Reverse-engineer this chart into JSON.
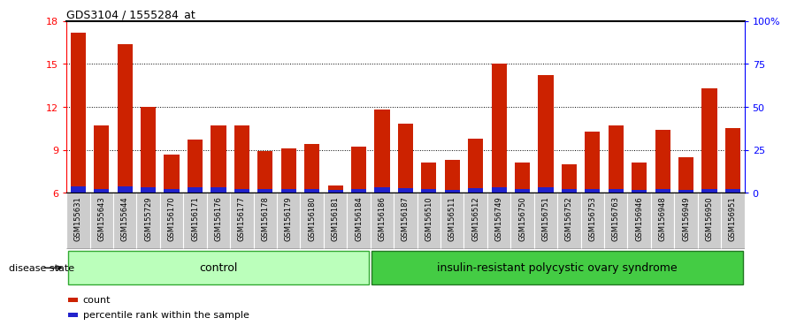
{
  "title": "GDS3104 / 1555284_at",
  "samples": [
    "GSM155631",
    "GSM155643",
    "GSM155644",
    "GSM155729",
    "GSM156170",
    "GSM156171",
    "GSM156176",
    "GSM156177",
    "GSM156178",
    "GSM156179",
    "GSM156180",
    "GSM156181",
    "GSM156184",
    "GSM156186",
    "GSM156187",
    "GSM156510",
    "GSM156511",
    "GSM156512",
    "GSM156749",
    "GSM156750",
    "GSM156751",
    "GSM156752",
    "GSM156753",
    "GSM156763",
    "GSM156946",
    "GSM156948",
    "GSM156949",
    "GSM156950",
    "GSM156951"
  ],
  "red_values": [
    17.2,
    10.7,
    16.4,
    12.0,
    8.7,
    9.7,
    10.7,
    10.7,
    8.9,
    9.1,
    9.4,
    6.5,
    9.2,
    11.8,
    10.8,
    8.1,
    8.3,
    9.8,
    15.0,
    8.1,
    14.2,
    8.0,
    10.3,
    10.7,
    8.1,
    10.4,
    8.5,
    13.3,
    10.5
  ],
  "blue_values": [
    0.45,
    0.28,
    0.48,
    0.42,
    0.25,
    0.38,
    0.38,
    0.28,
    0.24,
    0.24,
    0.24,
    0.22,
    0.28,
    0.38,
    0.34,
    0.28,
    0.22,
    0.34,
    0.38,
    0.24,
    0.38,
    0.24,
    0.28,
    0.28,
    0.22,
    0.28,
    0.22,
    0.28,
    0.28
  ],
  "ymin": 6,
  "ymax": 18,
  "yticks": [
    6,
    9,
    12,
    15,
    18
  ],
  "right_yticks": [
    0,
    25,
    50,
    75,
    100
  ],
  "right_ylabels": [
    "0",
    "25",
    "50",
    "75",
    "100%"
  ],
  "n_control": 13,
  "control_label": "control",
  "disease_label": "insulin-resistant polycystic ovary syndrome",
  "bar_color_red": "#cc2200",
  "bar_color_blue": "#2222cc",
  "bar_width": 0.65,
  "background_color": "#ffffff",
  "plot_bg": "#ffffff",
  "label_bg": "#cccccc",
  "control_bg": "#bbffbb",
  "disease_bg": "#44cc44",
  "legend_count": "count",
  "legend_pct": "percentile rank within the sample"
}
